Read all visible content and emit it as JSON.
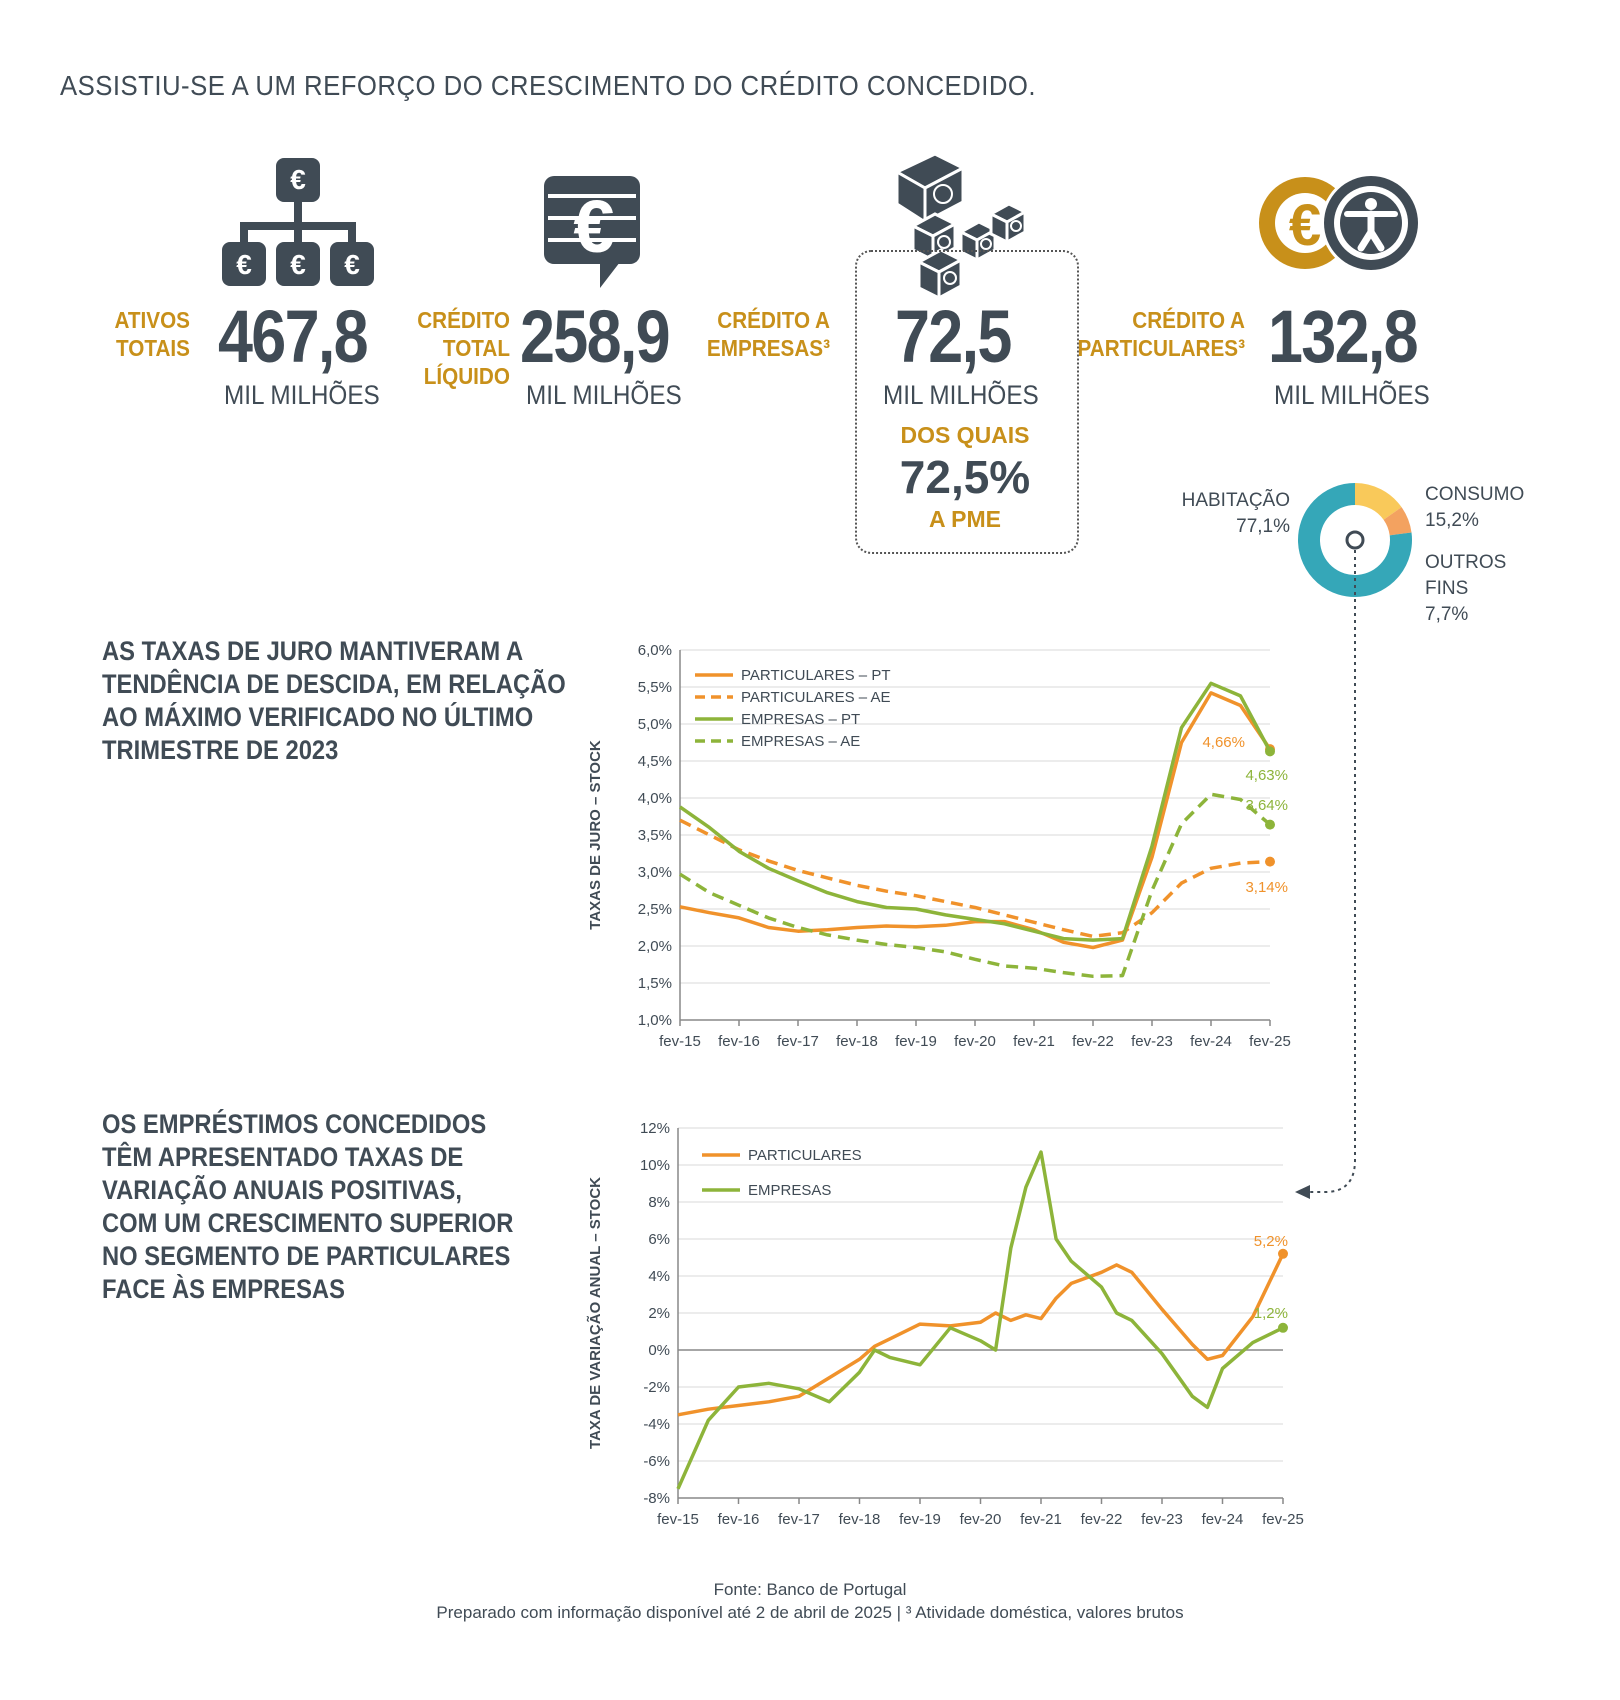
{
  "headline": "ASSISTIU-SE A UM REFORÇO DO CRESCIMENTO DO CRÉDITO CONCEDIDO.",
  "kpis": {
    "ativos": {
      "label1": "ATIVOS",
      "label2": "TOTAIS",
      "value": "467,8",
      "unit": "MIL MILHÕES"
    },
    "credito_total": {
      "label1": "CRÉDITO",
      "label2": "TOTAL",
      "label3": "LÍQUIDO",
      "value": "258,9",
      "unit": "MIL MILHÕES"
    },
    "empresas": {
      "label1": "CRÉDITO A",
      "label2": "EMPRESAS³",
      "value": "72,5",
      "unit": "MIL MILHÕES",
      "sub_label": "DOS QUAIS",
      "sub_value": "72,5%",
      "sub_unit": "A PME"
    },
    "particulares": {
      "label1": "CRÉDITO A",
      "label2": "PARTICULARES³",
      "value": "132,8",
      "unit": "MIL MILHÕES"
    }
  },
  "icons": [
    "euro-hierarchy-icon",
    "euro-speech-bubble-icon",
    "euro-cubes-icon",
    "euro-person-icon"
  ],
  "colors": {
    "orange": "#f0922b",
    "green": "#8db43a",
    "gold": "#c8901a",
    "slate": "#404b55",
    "teal": "#35a7b8",
    "yellow": "#f9c95a",
    "salmon": "#f3a260"
  },
  "donut": {
    "habitacao": {
      "label": "HABITAÇÃO",
      "value": "77,1%"
    },
    "consumo": {
      "label": "CONSUMO",
      "value": "15,2%"
    },
    "outros": {
      "label1": "OUTROS",
      "label2": "FINS",
      "value": "7,7%"
    }
  },
  "section1_title": [
    "AS TAXAS DE JURO MANTIVERAM A",
    "TENDÊNCIA DE DESCIDA, EM RELAÇÃO",
    "AO MÁXIMO VERIFICADO NO ÚLTIMO",
    "TRIMESTRE DE 2023"
  ],
  "section2_title": [
    "OS EMPRÉSTIMOS CONCEDIDOS",
    "TÊM APRESENTADO TAXAS DE",
    "VARIAÇÃO ANUAIS POSITIVAS,",
    "COM UM CRESCIMENTO SUPERIOR",
    "NO SEGMENTO DE PARTICULARES",
    "FACE ÀS EMPRESAS"
  ],
  "footer": {
    "line1": "Fonte: Banco de Portugal",
    "line2": "Preparado com informação disponível até 2 de abril de 2025  |  ³ Atividade doméstica, valores brutos"
  },
  "chart_data": [
    {
      "type": "line",
      "ylabel": "TAXAS DE JURO – STOCK",
      "ylim": [
        1.0,
        6.0
      ],
      "yticks": [
        "1,0%",
        "1,5%",
        "2,0%",
        "2,5%",
        "3,0%",
        "3,5%",
        "4,0%",
        "4,5%",
        "5,0%",
        "5,5%",
        "6,0%"
      ],
      "xticks": [
        "fev-15",
        "fev-16",
        "fev-17",
        "fev-18",
        "fev-19",
        "fev-20",
        "fev-21",
        "fev-22",
        "fev-23",
        "fev-24",
        "fev-25"
      ],
      "x": [
        2015.0,
        2015.5,
        2016.0,
        2016.5,
        2017.0,
        2017.5,
        2018.0,
        2018.5,
        2019.0,
        2019.5,
        2020.0,
        2020.5,
        2021.0,
        2021.5,
        2022.0,
        2022.5,
        2023.0,
        2023.5,
        2024.0,
        2024.5,
        2025.0
      ],
      "series": [
        {
          "name": "PARTICULARES – PT",
          "color": "#f0922b",
          "dash": false,
          "values": [
            2.53,
            2.45,
            2.38,
            2.25,
            2.2,
            2.22,
            2.25,
            2.27,
            2.26,
            2.28,
            2.33,
            2.33,
            2.22,
            2.05,
            1.98,
            2.08,
            3.2,
            4.75,
            5.42,
            5.25,
            4.66
          ]
        },
        {
          "name": "PARTICULARES – AE",
          "color": "#f0922b",
          "dash": true,
          "values": [
            3.7,
            3.5,
            3.3,
            3.15,
            3.02,
            2.92,
            2.82,
            2.74,
            2.68,
            2.6,
            2.52,
            2.42,
            2.32,
            2.22,
            2.13,
            2.18,
            2.45,
            2.85,
            3.05,
            3.12,
            3.14
          ]
        },
        {
          "name": "EMPRESAS – PT",
          "color": "#8db43a",
          "dash": false,
          "values": [
            3.88,
            3.6,
            3.28,
            3.05,
            2.88,
            2.72,
            2.6,
            2.52,
            2.5,
            2.42,
            2.36,
            2.3,
            2.2,
            2.1,
            2.08,
            2.1,
            3.35,
            4.95,
            5.55,
            5.38,
            4.63
          ]
        },
        {
          "name": "EMPRESAS – AE",
          "color": "#8db43a",
          "dash": true,
          "values": [
            2.97,
            2.72,
            2.55,
            2.38,
            2.25,
            2.15,
            2.08,
            2.02,
            1.98,
            1.92,
            1.82,
            1.73,
            1.7,
            1.64,
            1.59,
            1.6,
            2.75,
            3.65,
            4.05,
            3.98,
            3.64
          ]
        }
      ],
      "end_labels": [
        {
          "series": 0,
          "text": "4,66%"
        },
        {
          "series": 2,
          "text": "4,63%"
        },
        {
          "series": 3,
          "text": "3,64%"
        },
        {
          "series": 1,
          "text": "3,14%"
        }
      ]
    },
    {
      "type": "line",
      "ylabel": "TAXA DE VARIAÇÃO ANUAL – STOCK",
      "ylim": [
        -8,
        12
      ],
      "yticks": [
        "-8%",
        "-6%",
        "-4%",
        "-2%",
        "0%",
        "2%",
        "4%",
        "6%",
        "8%",
        "10%",
        "12%"
      ],
      "xticks": [
        "fev-15",
        "fev-16",
        "fev-17",
        "fev-18",
        "fev-19",
        "fev-20",
        "fev-21",
        "fev-22",
        "fev-23",
        "fev-24",
        "fev-25"
      ],
      "x": [
        2015.0,
        2015.5,
        2016.0,
        2016.5,
        2017.0,
        2017.5,
        2018.0,
        2018.25,
        2018.5,
        2019.0,
        2019.5,
        2020.0,
        2020.25,
        2020.5,
        2020.75,
        2021.0,
        2021.25,
        2021.5,
        2022.0,
        2022.25,
        2022.5,
        2023.0,
        2023.5,
        2023.75,
        2024.0,
        2024.5,
        2025.0
      ],
      "series": [
        {
          "name": "PARTICULARES",
          "color": "#f0922b",
          "values": [
            -3.5,
            -3.2,
            -3.0,
            -2.8,
            -2.5,
            -1.5,
            -0.5,
            0.2,
            0.6,
            1.4,
            1.3,
            1.5,
            2.0,
            1.6,
            1.9,
            1.7,
            2.8,
            3.6,
            4.2,
            4.6,
            4.2,
            2.2,
            0.3,
            -0.5,
            -0.3,
            1.8,
            5.2
          ]
        },
        {
          "name": "EMPRESAS",
          "color": "#8db43a",
          "values": [
            -7.5,
            -3.8,
            -2.0,
            -1.8,
            -2.1,
            -2.8,
            -1.2,
            0.0,
            -0.4,
            -0.8,
            1.2,
            0.5,
            0.0,
            5.5,
            8.8,
            10.7,
            6.0,
            4.8,
            3.4,
            2.0,
            1.6,
            -0.2,
            -2.5,
            -3.1,
            -1.0,
            0.4,
            1.2
          ]
        }
      ],
      "end_labels": [
        {
          "series": 0,
          "text": "5,2%"
        },
        {
          "series": 1,
          "text": "1,2%"
        }
      ]
    }
  ]
}
